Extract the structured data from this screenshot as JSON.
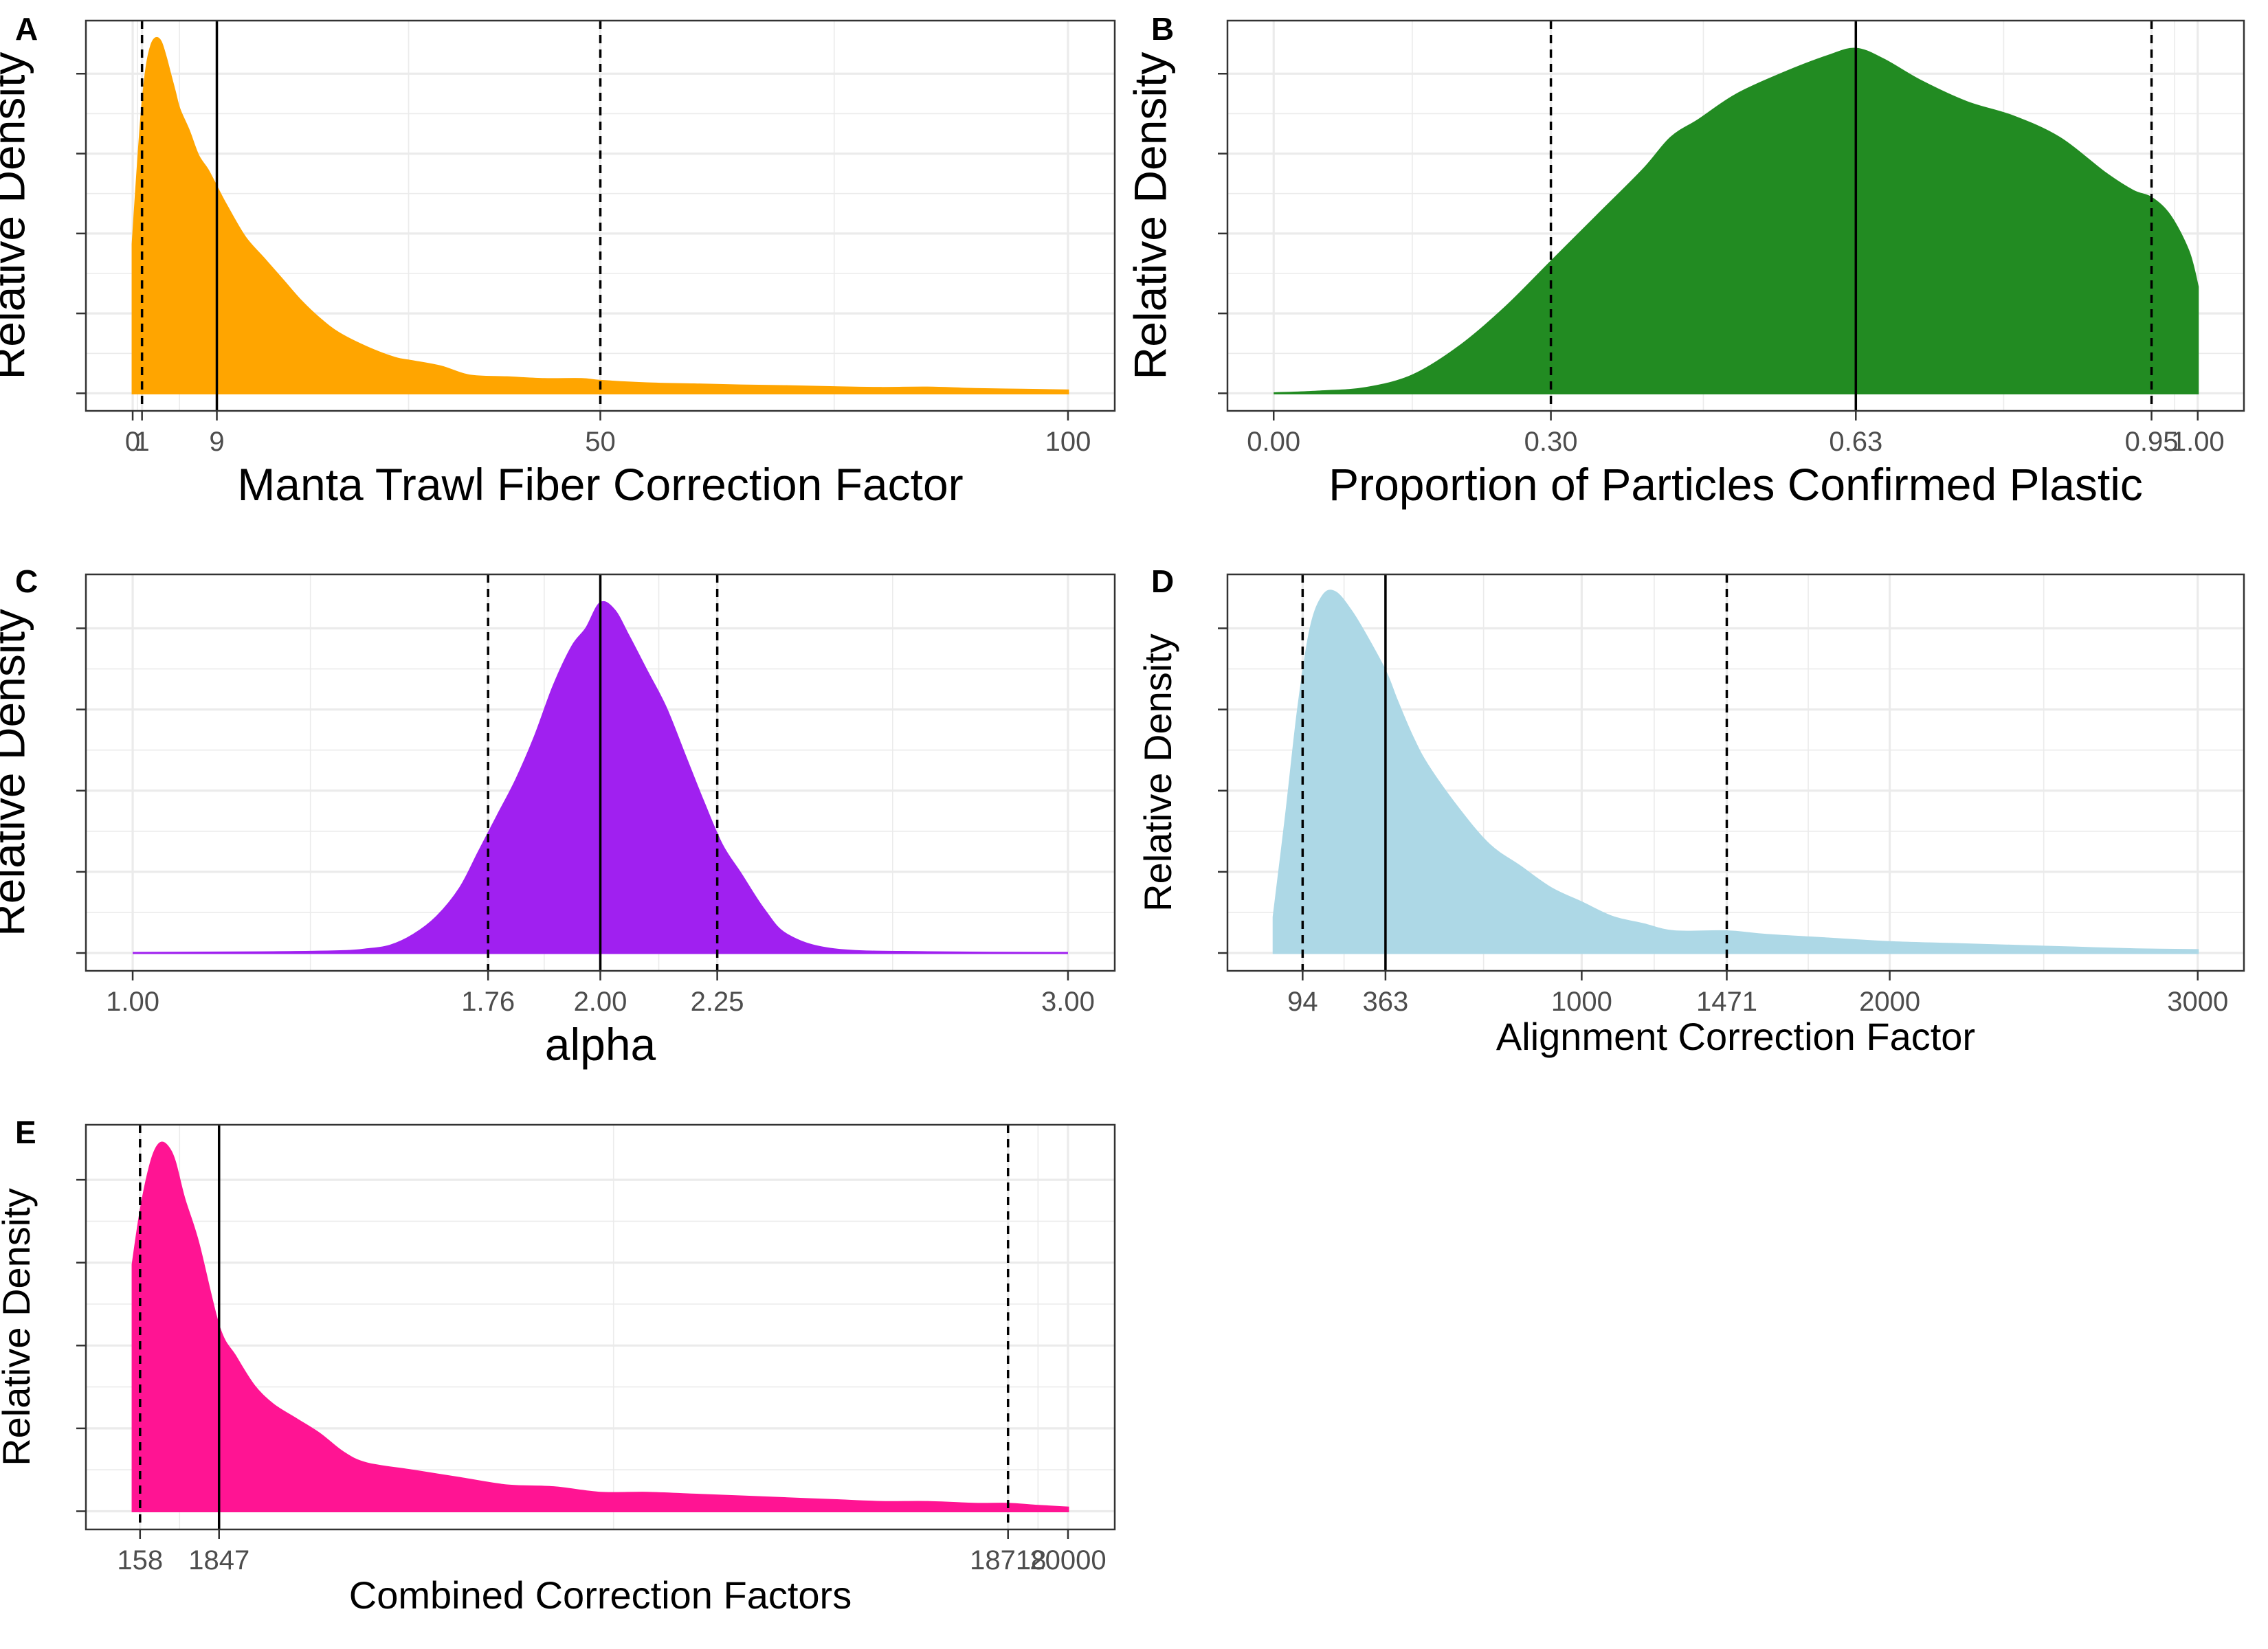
{
  "chart_data": [
    {
      "tag": "A",
      "type": "area",
      "xlabel": "Manta Trawl Fiber Correction Factor",
      "ylabel": "Relative Density",
      "xlim": [
        0,
        100
      ],
      "xticks": [
        0,
        1,
        9,
        50,
        100
      ],
      "x_tick_labels": [
        "0",
        "1",
        "9",
        "50",
        "100"
      ],
      "ylim": [
        0,
        1
      ],
      "fill_color": "#FFA500",
      "median": 9,
      "interval": [
        1,
        50
      ],
      "x": [
        0,
        0.5,
        1,
        1.5,
        2,
        2.5,
        3,
        3.5,
        4,
        4.5,
        5,
        6,
        7,
        8,
        9,
        10,
        12,
        14,
        16,
        18,
        20,
        22,
        25,
        28,
        30,
        33,
        36,
        40,
        44,
        48,
        50,
        55,
        60,
        65,
        70,
        75,
        80,
        85,
        90,
        95,
        100
      ],
      "y": [
        0.42,
        0.62,
        0.8,
        0.92,
        0.98,
        1.0,
        0.99,
        0.95,
        0.9,
        0.85,
        0.8,
        0.74,
        0.67,
        0.63,
        0.58,
        0.53,
        0.44,
        0.38,
        0.32,
        0.26,
        0.21,
        0.17,
        0.13,
        0.1,
        0.09,
        0.075,
        0.05,
        0.045,
        0.04,
        0.04,
        0.035,
        0.028,
        0.025,
        0.022,
        0.02,
        0.017,
        0.015,
        0.016,
        0.012,
        0.01,
        0.008
      ]
    },
    {
      "tag": "B",
      "type": "area",
      "xlabel": "Proportion of Particles Confirmed Plastic",
      "ylabel": "Relative Density",
      "xlim": [
        0,
        1
      ],
      "xticks": [
        0,
        0.3,
        0.63,
        0.95,
        1
      ],
      "x_tick_labels": [
        "0.00",
        "0.30",
        "0.63",
        "0.95",
        "1.00"
      ],
      "ylim": [
        0,
        1
      ],
      "fill_color": "#228B22",
      "median": 0.63,
      "interval": [
        0.3,
        0.95
      ],
      "x": [
        0,
        0.05,
        0.1,
        0.15,
        0.2,
        0.25,
        0.3,
        0.35,
        0.4,
        0.43,
        0.46,
        0.5,
        0.55,
        0.6,
        0.63,
        0.66,
        0.7,
        0.75,
        0.8,
        0.85,
        0.9,
        0.93,
        0.95,
        0.97,
        0.99,
        1
      ],
      "y": [
        0.0,
        0.005,
        0.015,
        0.05,
        0.13,
        0.24,
        0.37,
        0.5,
        0.63,
        0.72,
        0.77,
        0.84,
        0.9,
        0.95,
        0.97,
        0.94,
        0.88,
        0.82,
        0.78,
        0.72,
        0.62,
        0.57,
        0.55,
        0.5,
        0.4,
        0.3
      ]
    },
    {
      "tag": "C",
      "type": "area",
      "xlabel": "alpha",
      "ylabel": "Relative Density",
      "xlim": [
        1,
        3
      ],
      "xticks": [
        1,
        1.76,
        2,
        2.25,
        3
      ],
      "x_tick_labels": [
        "1.00",
        "1.76",
        "2.00",
        "2.25",
        "3.00"
      ],
      "ylim": [
        0,
        1
      ],
      "fill_color": "#A020F0",
      "median": 2,
      "interval": [
        1.76,
        2.25
      ],
      "x": [
        1,
        1.3,
        1.45,
        1.5,
        1.55,
        1.6,
        1.65,
        1.7,
        1.74,
        1.78,
        1.82,
        1.86,
        1.9,
        1.94,
        1.97,
        2,
        2.03,
        2.06,
        2.1,
        2.14,
        2.18,
        2.22,
        2.26,
        2.3,
        2.35,
        2.4,
        2.5,
        2.7,
        3
      ],
      "y": [
        0.0,
        0.002,
        0.005,
        0.01,
        0.02,
        0.05,
        0.1,
        0.18,
        0.28,
        0.38,
        0.48,
        0.6,
        0.74,
        0.85,
        0.9,
        0.97,
        0.95,
        0.88,
        0.78,
        0.68,
        0.55,
        0.42,
        0.3,
        0.22,
        0.12,
        0.05,
        0.01,
        0.002,
        0.0
      ]
    },
    {
      "tag": "D",
      "type": "area",
      "xlabel": "Alignment Correction Factor",
      "ylabel": "Relative Density",
      "xlim": [
        0,
        3000
      ],
      "xticks": [
        94,
        363,
        1000,
        1471,
        2000,
        3000
      ],
      "x_tick_labels": [
        "94",
        "363",
        "1000",
        "1471",
        "2000",
        "3000"
      ],
      "ylim": [
        0,
        1
      ],
      "fill_color": "#ADD8E6",
      "median": 363,
      "interval": [
        94,
        1471
      ],
      "x": [
        0,
        40,
        80,
        120,
        160,
        200,
        250,
        300,
        363,
        400,
        450,
        500,
        600,
        700,
        800,
        900,
        1000,
        1100,
        1200,
        1300,
        1471,
        1600,
        1800,
        2000,
        2200,
        2400,
        2600,
        2800,
        3000
      ],
      "y": [
        0.1,
        0.38,
        0.68,
        0.9,
        0.99,
        1.0,
        0.95,
        0.88,
        0.78,
        0.7,
        0.6,
        0.52,
        0.4,
        0.3,
        0.24,
        0.18,
        0.14,
        0.1,
        0.08,
        0.06,
        0.06,
        0.05,
        0.04,
        0.03,
        0.025,
        0.02,
        0.015,
        0.01,
        0.008
      ]
    },
    {
      "tag": "E",
      "type": "area",
      "xlabel": "Combined Correction Factors",
      "ylabel": "Relative Density",
      "xlim": [
        0,
        20000
      ],
      "xticks": [
        158,
        1847,
        18718,
        20000
      ],
      "x_tick_labels": [
        "158",
        "1847",
        "18718",
        "20000"
      ],
      "ylim": [
        0,
        1
      ],
      "fill_color": "#FF1493",
      "median": 1847,
      "interval": [
        158,
        18718
      ],
      "x": [
        0,
        150,
        300,
        450,
        600,
        750,
        900,
        1100,
        1400,
        1847,
        2200,
        2600,
        3000,
        3500,
        4000,
        4500,
        5000,
        6000,
        7000,
        8000,
        9000,
        10000,
        11000,
        12000,
        13000,
        14000,
        15000,
        16000,
        17000,
        18000,
        18718,
        19300,
        20000
      ],
      "y": [
        0.67,
        0.8,
        0.9,
        0.97,
        1.0,
        0.99,
        0.95,
        0.85,
        0.73,
        0.5,
        0.42,
        0.34,
        0.29,
        0.25,
        0.21,
        0.16,
        0.13,
        0.11,
        0.09,
        0.07,
        0.065,
        0.05,
        0.05,
        0.045,
        0.04,
        0.035,
        0.03,
        0.025,
        0.025,
        0.02,
        0.02,
        0.015,
        0.01
      ]
    }
  ]
}
